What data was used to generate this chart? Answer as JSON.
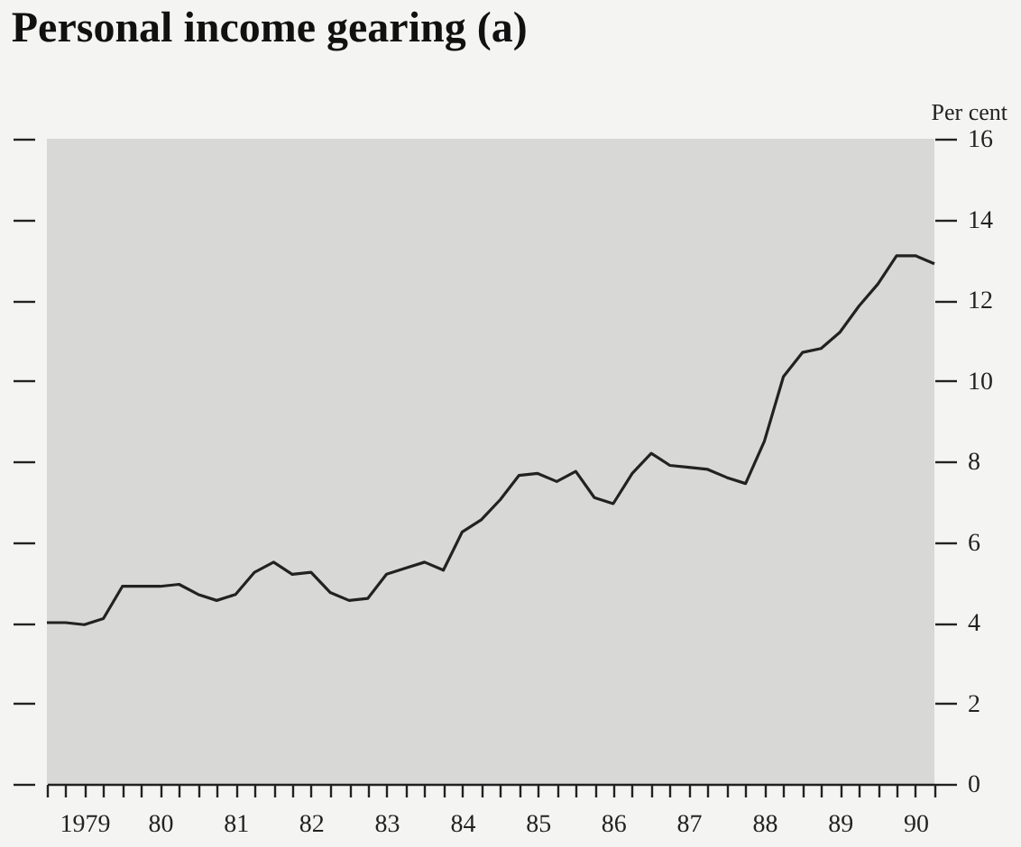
{
  "chart_data": {
    "type": "line",
    "title": "Personal income gearing (a)",
    "ylabel": "Per cent",
    "x": [
      "1979-01",
      "1979-04",
      "1979-07",
      "1979-10",
      "1980-01",
      "1980-04",
      "1980-07",
      "1980-10",
      "1981-01",
      "1981-04",
      "1981-07",
      "1981-10",
      "1982-01",
      "1982-04",
      "1982-07",
      "1982-10",
      "1983-01",
      "1983-04",
      "1983-07",
      "1983-10",
      "1984-01",
      "1984-04",
      "1984-07",
      "1984-10",
      "1985-01",
      "1985-04",
      "1985-07",
      "1985-10",
      "1986-01",
      "1986-04",
      "1986-07",
      "1986-10",
      "1987-01",
      "1987-04",
      "1987-07",
      "1987-10",
      "1988-01",
      "1988-04",
      "1988-07",
      "1988-10",
      "1989-01",
      "1989-04",
      "1989-07",
      "1989-10",
      "1990-01",
      "1990-04",
      "1990-07",
      "1990-10"
    ],
    "series": [
      {
        "color": "#222222",
        "values": [
          4.0,
          4.0,
          3.95,
          4.1,
          4.9,
          4.9,
          4.9,
          4.95,
          4.7,
          4.55,
          4.7,
          5.25,
          5.5,
          5.2,
          5.25,
          4.75,
          4.55,
          4.6,
          5.2,
          5.35,
          5.5,
          5.3,
          6.25,
          6.55,
          7.05,
          7.65,
          7.7,
          7.5,
          7.75,
          7.1,
          6.95,
          7.7,
          8.2,
          7.9,
          7.85,
          7.8,
          7.6,
          7.45,
          8.5,
          10.1,
          10.7,
          10.8,
          11.2,
          11.85,
          12.4,
          13.1,
          13.1,
          12.9
        ]
      }
    ],
    "xlim": [
      "1979-01",
      "1990-10"
    ],
    "xticks": [
      {
        "value": "1979-01",
        "label": null
      },
      {
        "value": "1979-04",
        "label": null
      },
      {
        "value": "1979-07",
        "label": "1979"
      },
      {
        "value": "1979-10",
        "label": null
      },
      {
        "value": "1980-01",
        "label": null
      },
      {
        "value": "1980-04",
        "label": null
      },
      {
        "value": "1980-07",
        "label": "80"
      },
      {
        "value": "1980-10",
        "label": null
      },
      {
        "value": "1981-01",
        "label": null
      },
      {
        "value": "1981-04",
        "label": null
      },
      {
        "value": "1981-07",
        "label": "81"
      },
      {
        "value": "1981-10",
        "label": null
      },
      {
        "value": "1982-01",
        "label": null
      },
      {
        "value": "1982-04",
        "label": null
      },
      {
        "value": "1982-07",
        "label": "82"
      },
      {
        "value": "1982-10",
        "label": null
      },
      {
        "value": "1983-01",
        "label": null
      },
      {
        "value": "1983-04",
        "label": null
      },
      {
        "value": "1983-07",
        "label": "83"
      },
      {
        "value": "1983-10",
        "label": null
      },
      {
        "value": "1984-01",
        "label": null
      },
      {
        "value": "1984-04",
        "label": null
      },
      {
        "value": "1984-07",
        "label": "84"
      },
      {
        "value": "1984-10",
        "label": null
      },
      {
        "value": "1985-01",
        "label": null
      },
      {
        "value": "1985-04",
        "label": null
      },
      {
        "value": "1985-07",
        "label": "85"
      },
      {
        "value": "1985-10",
        "label": null
      },
      {
        "value": "1986-01",
        "label": null
      },
      {
        "value": "1986-04",
        "label": null
      },
      {
        "value": "1986-07",
        "label": "86"
      },
      {
        "value": "1986-10",
        "label": null
      },
      {
        "value": "1987-01",
        "label": null
      },
      {
        "value": "1987-04",
        "label": null
      },
      {
        "value": "1987-07",
        "label": "87"
      },
      {
        "value": "1987-10",
        "label": null
      },
      {
        "value": "1988-01",
        "label": null
      },
      {
        "value": "1988-04",
        "label": null
      },
      {
        "value": "1988-07",
        "label": "88"
      },
      {
        "value": "1988-10",
        "label": null
      },
      {
        "value": "1989-01",
        "label": null
      },
      {
        "value": "1989-04",
        "label": null
      },
      {
        "value": "1989-07",
        "label": "89"
      },
      {
        "value": "1989-10",
        "label": null
      },
      {
        "value": "1990-01",
        "label": null
      },
      {
        "value": "1990-04",
        "label": null
      },
      {
        "value": "1990-07",
        "label": "90"
      },
      {
        "value": "1990-10",
        "label": null
      }
    ],
    "ylim": [
      0,
      16
    ],
    "yticks": [
      0,
      2,
      4,
      6,
      8,
      10,
      12,
      14,
      16
    ],
    "grid": false
  }
}
